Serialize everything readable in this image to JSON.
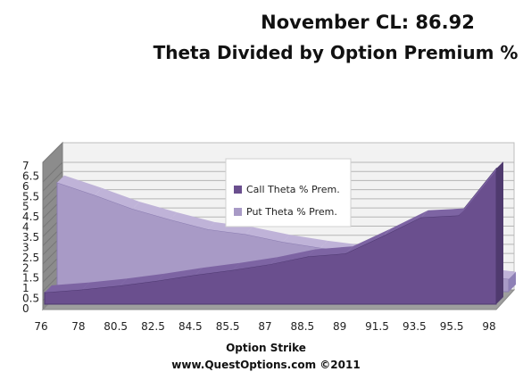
{
  "chart_data": {
    "type": "area",
    "title": "November CL: 86.92",
    "subtitle": "Theta Divided by Option Premium %",
    "xlabel": "Option Strike",
    "credit": "www.QuestOptions.com ©2011",
    "categories": [
      "76",
      "78",
      "80.5",
      "82.5",
      "84.5",
      "85.5",
      "87",
      "88.5",
      "89",
      "91.5",
      "93.5",
      "95.5",
      "98"
    ],
    "y_ticks": [
      "0",
      "0.5",
      "1",
      "1.5",
      "2",
      "2.5",
      "3",
      "3.5",
      "4",
      "4.5",
      "5",
      "5.5",
      "6",
      "6.5",
      "7"
    ],
    "ylim": [
      0,
      7
    ],
    "grid": true,
    "legend_position": "center-top",
    "series": [
      {
        "name": "Call Theta % Prem.",
        "color": "#6a4f8e",
        "values": [
          0.6,
          0.75,
          0.95,
          1.2,
          1.5,
          1.75,
          2.05,
          2.45,
          2.6,
          3.5,
          4.45,
          4.55,
          6.95
        ]
      },
      {
        "name": "Put Theta % Prem.",
        "color": "#a89ac6",
        "values": [
          5.6,
          4.95,
          4.25,
          3.7,
          3.2,
          2.95,
          2.55,
          2.25,
          2.0,
          1.6,
          1.15,
          0.9,
          0.65
        ]
      }
    ]
  }
}
